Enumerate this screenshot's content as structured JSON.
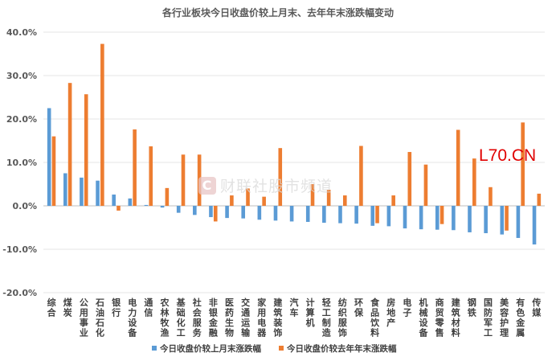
{
  "chart_data": {
    "type": "bar",
    "title": "各行业板块今日收盘价较上月末、去年年末涨跌幅变动",
    "xlabel": "",
    "ylabel": "",
    "ylim": [
      -20,
      40
    ],
    "yticks": [
      "40.0%",
      "30.0%",
      "20.0%",
      "10.0%",
      "0.0%",
      "-10.0%",
      "-20.0%"
    ],
    "grid": true,
    "legend_position": "bottom",
    "categories": [
      "综合",
      "煤炭",
      "公用事业",
      "石油石化",
      "银行",
      "电力设备",
      "通信",
      "农林牧渔",
      "基础化工",
      "社会服务",
      "非银金融",
      "医药生物",
      "交通运输",
      "家用电器",
      "建筑装饰",
      "汽车",
      "计算机",
      "轻工制造",
      "纺织服饰",
      "环保",
      "食品饮料",
      "房地产",
      "电子",
      "机械设备",
      "商贸零售",
      "建筑材料",
      "钢铁",
      "国防军工",
      "美容护理",
      "有色金属",
      "传媒"
    ],
    "series": [
      {
        "name": "今日收盘价较上月末涨跌幅",
        "color": "#5b9bd5",
        "values": [
          22.5,
          7.5,
          6.5,
          5.8,
          2.6,
          1.7,
          0.2,
          -0.4,
          -1.6,
          -2.1,
          -2.6,
          -2.8,
          -2.9,
          -3.2,
          -3.4,
          -3.6,
          -3.7,
          -3.9,
          -4.0,
          -4.1,
          -4.6,
          -4.7,
          -5.2,
          -5.4,
          -5.5,
          -5.6,
          -6.1,
          -6.3,
          -6.6,
          -7.4,
          -8.9
        ]
      },
      {
        "name": "今日收盘价较去年年末涨跌幅",
        "color": "#ed7d31",
        "values": [
          16.0,
          28.3,
          25.7,
          37.3,
          -1.1,
          17.6,
          13.7,
          4.1,
          11.8,
          11.8,
          -3.6,
          2.4,
          4.0,
          2.1,
          13.3,
          0.0,
          5.0,
          3.7,
          2.4,
          13.8,
          -4.0,
          2.4,
          12.4,
          9.5,
          -4.2,
          17.5,
          10.9,
          4.3,
          -5.7,
          19.2,
          2.8
        ]
      }
    ]
  },
  "watermarks": {
    "logo": "财联社股市频道",
    "corner": "L70.CN"
  }
}
